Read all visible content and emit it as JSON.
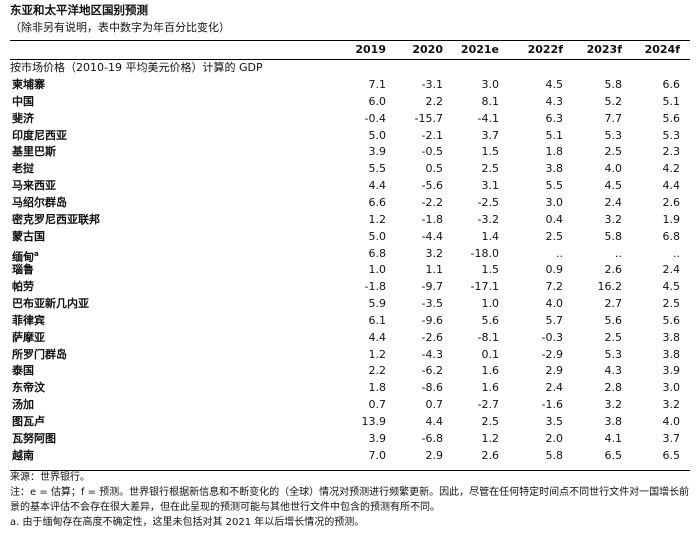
{
  "header": {
    "title": "东亚和太平洋地区国别预测",
    "subtitle": "（除非另有说明，表中数字为年百分比变化）"
  },
  "table": {
    "columns": [
      "2019",
      "2020",
      "2021e",
      "2022f",
      "2023f",
      "2024f"
    ],
    "section": "按市场价格（2010-19 平均美元价格）计算的 GDP",
    "rows": [
      {
        "label": "柬埔寨",
        "values": [
          "7.1",
          "-3.1",
          "3.0",
          "4.5",
          "5.8",
          "6.6"
        ]
      },
      {
        "label": "中国",
        "values": [
          "6.0",
          "2.2",
          "8.1",
          "4.3",
          "5.2",
          "5.1"
        ]
      },
      {
        "label": "斐济",
        "values": [
          "-0.4",
          "-15.7",
          "-4.1",
          "6.3",
          "7.7",
          "5.6"
        ]
      },
      {
        "label": "印度尼西亚",
        "values": [
          "5.0",
          "-2.1",
          "3.7",
          "5.1",
          "5.3",
          "5.3"
        ]
      },
      {
        "label": "基里巴斯",
        "values": [
          "3.9",
          "-0.5",
          "1.5",
          "1.8",
          "2.5",
          "2.3"
        ]
      },
      {
        "label": "老挝",
        "values": [
          "5.5",
          "0.5",
          "2.5",
          "3.8",
          "4.0",
          "4.2"
        ]
      },
      {
        "label": "马来西亚",
        "values": [
          "4.4",
          "-5.6",
          "3.1",
          "5.5",
          "4.5",
          "4.4"
        ]
      },
      {
        "label": "马绍尔群岛",
        "values": [
          "6.6",
          "-2.2",
          "-2.5",
          "3.0",
          "2.4",
          "2.6"
        ]
      },
      {
        "label": "密克罗尼西亚联邦",
        "values": [
          "1.2",
          "-1.8",
          "-3.2",
          "0.4",
          "3.2",
          "1.9"
        ]
      },
      {
        "label": "蒙古国",
        "values": [
          "5.0",
          "-4.4",
          "1.4",
          "2.5",
          "5.8",
          "6.8"
        ]
      },
      {
        "label": "缅甸",
        "note": "a",
        "values": [
          "6.8",
          "3.2",
          "-18.0",
          "..",
          "..",
          ".."
        ]
      },
      {
        "label": "瑙鲁",
        "values": [
          "1.0",
          "1.1",
          "1.5",
          "0.9",
          "2.6",
          "2.4"
        ]
      },
      {
        "label": "帕劳",
        "values": [
          "-1.8",
          "-9.7",
          "-17.1",
          "7.2",
          "16.2",
          "4.5"
        ]
      },
      {
        "label": "巴布亚新几内亚",
        "values": [
          "5.9",
          "-3.5",
          "1.0",
          "4.0",
          "2.7",
          "2.5"
        ]
      },
      {
        "label": "菲律宾",
        "values": [
          "6.1",
          "-9.6",
          "5.6",
          "5.7",
          "5.6",
          "5.6"
        ]
      },
      {
        "label": "萨摩亚",
        "values": [
          "4.4",
          "-2.6",
          "-8.1",
          "-0.3",
          "2.5",
          "3.8"
        ]
      },
      {
        "label": "所罗门群岛",
        "values": [
          "1.2",
          "-4.3",
          "0.1",
          "-2.9",
          "5.3",
          "3.8"
        ]
      },
      {
        "label": "泰国",
        "values": [
          "2.2",
          "-6.2",
          "1.6",
          "2.9",
          "4.3",
          "3.9"
        ]
      },
      {
        "label": "东帝汶",
        "values": [
          "1.8",
          "-8.6",
          "1.6",
          "2.4",
          "2.8",
          "3.0"
        ]
      },
      {
        "label": "汤加",
        "values": [
          "0.7",
          "0.7",
          "-2.7",
          "-1.6",
          "3.2",
          "3.2"
        ]
      },
      {
        "label": "图瓦卢",
        "values": [
          "13.9",
          "4.4",
          "2.5",
          "3.5",
          "3.8",
          "4.0"
        ]
      },
      {
        "label": "瓦努阿图",
        "values": [
          "3.9",
          "-6.8",
          "1.2",
          "2.0",
          "4.1",
          "3.7"
        ]
      },
      {
        "label": "越南",
        "values": [
          "7.0",
          "2.9",
          "2.6",
          "5.8",
          "6.5",
          "6.5"
        ]
      }
    ]
  },
  "footer": {
    "source": "来源：世界银行。",
    "notes": [
      "注：e = 估算；f = 预测。世界银行根据新信息和不断变化的（全球）情况对预测进行频繁更新。因此，尽管在任何特定时间点不同世行文件对一国增长前景的基本评估不会存在很大差异，但在此呈现的预测可能与其他世行文件中包含的预测有所不同。",
      "a. 由于缅甸存在高度不确定性，这里未包括对其 2021 年以后增长情况的预测。"
    ]
  }
}
